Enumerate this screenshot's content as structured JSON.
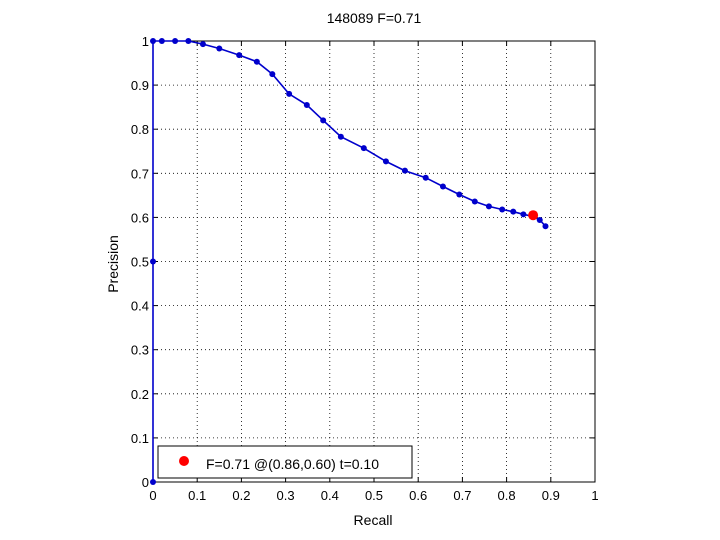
{
  "chart_data": {
    "type": "line",
    "title": "148089 F=0.71",
    "xlabel": "Recall",
    "ylabel": "Precision",
    "xlim": [
      0,
      1
    ],
    "ylim": [
      0,
      1
    ],
    "xticks": [
      "0",
      "0.1",
      "0.2",
      "0.3",
      "0.4",
      "0.5",
      "0.6",
      "0.7",
      "0.8",
      "0.9",
      "1"
    ],
    "yticks": [
      "0",
      "0.1",
      "0.2",
      "0.3",
      "0.4",
      "0.5",
      "0.6",
      "0.7",
      "0.8",
      "0.9",
      "1"
    ],
    "grid": true,
    "legend_position": "bottom-left",
    "series": [
      {
        "color": "#0000cc",
        "x": [
          0.0,
          0.0,
          0.0,
          0.02,
          0.05,
          0.08,
          0.113,
          0.15,
          0.195,
          0.235,
          0.27,
          0.308,
          0.348,
          0.385,
          0.425,
          0.477,
          0.527,
          0.57,
          0.617,
          0.656,
          0.693,
          0.728,
          0.76,
          0.79,
          0.815,
          0.838,
          0.86,
          0.875,
          0.888
        ],
        "y": [
          0.0,
          0.5,
          1.0,
          1.0,
          1.0,
          1.0,
          0.993,
          0.983,
          0.968,
          0.953,
          0.925,
          0.88,
          0.855,
          0.82,
          0.783,
          0.757,
          0.727,
          0.706,
          0.69,
          0.67,
          0.652,
          0.636,
          0.625,
          0.618,
          0.613,
          0.607,
          0.602,
          0.594,
          0.58
        ]
      }
    ],
    "highlight": {
      "x": 0.86,
      "y": 0.605,
      "color": "#ff0000",
      "label": "F=0.71 @(0.86,0.60) t=0.10"
    }
  }
}
